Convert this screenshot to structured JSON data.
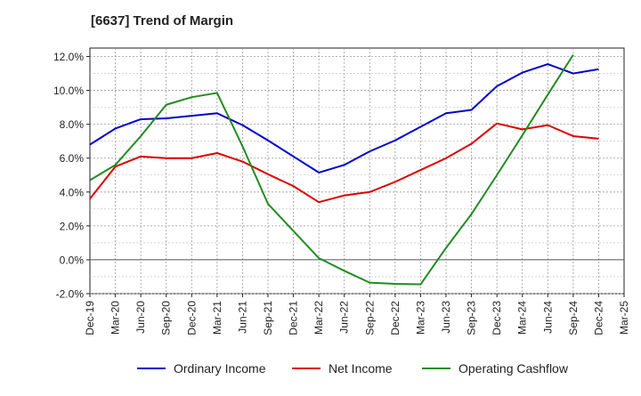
{
  "chart_data": {
    "type": "line",
    "title": "[6637]  Trend of Margin",
    "xlabel": "",
    "ylabel": "",
    "x": [
      "Dec-19",
      "Mar-20",
      "Jun-20",
      "Sep-20",
      "Dec-20",
      "Mar-21",
      "Jun-21",
      "Sep-21",
      "Dec-21",
      "Mar-22",
      "Jun-22",
      "Sep-22",
      "Dec-22",
      "Mar-23",
      "Jun-23",
      "Sep-23",
      "Dec-23",
      "Mar-24",
      "Jun-24",
      "Sep-24",
      "Dec-24",
      "Mar-25"
    ],
    "ylim": [
      -2.0,
      12.5
    ],
    "yticks": [
      "-2.0%",
      "0.0%",
      "2.0%",
      "4.0%",
      "6.0%",
      "8.0%",
      "10.0%",
      "12.0%"
    ],
    "ytick_values": [
      -2,
      0,
      2,
      4,
      6,
      8,
      10,
      12
    ],
    "grid": true,
    "legend_position": "bottom",
    "series": [
      {
        "name": "Ordinary Income",
        "color": "#0000cc",
        "values": [
          6.8,
          7.75,
          8.3,
          8.35,
          8.5,
          8.65,
          7.95,
          7.05,
          6.1,
          5.15,
          5.6,
          6.4,
          7.05,
          7.85,
          8.65,
          8.85,
          10.25,
          11.05,
          11.55,
          11.0,
          11.25,
          null
        ]
      },
      {
        "name": "Net Income",
        "color": "#dd0000",
        "values": [
          3.6,
          5.5,
          6.1,
          6.0,
          6.0,
          6.3,
          5.8,
          5.05,
          4.35,
          3.4,
          3.8,
          4.0,
          4.6,
          5.3,
          6.0,
          6.85,
          8.05,
          7.7,
          7.95,
          7.3,
          7.15,
          null
        ]
      },
      {
        "name": "Operating Cashflow",
        "color": "#228b22",
        "values": [
          4.7,
          5.6,
          7.3,
          9.15,
          9.6,
          9.85,
          6.7,
          3.3,
          1.7,
          0.1,
          -0.65,
          -1.35,
          -1.42,
          -1.45,
          0.7,
          2.7,
          5.0,
          7.35,
          9.75,
          12.1,
          null,
          null
        ]
      }
    ]
  }
}
